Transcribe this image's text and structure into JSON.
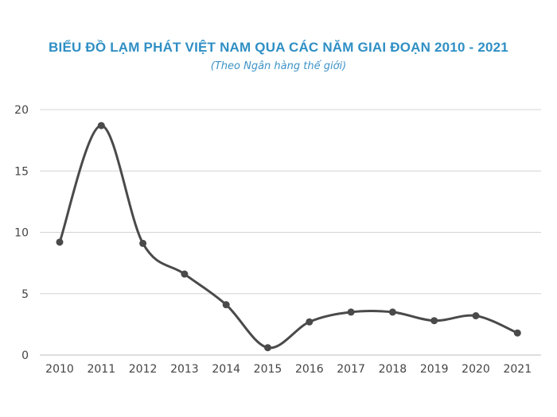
{
  "chart_data": {
    "type": "line",
    "title": "BIỂU ĐỒ LẠM PHÁT VIỆT NAM QUA CÁC NĂM GIAI ĐOẠN 2010 - 2021",
    "subtitle": "(Theo Ngân hàng thế giới)",
    "xlabel": "",
    "ylabel": "",
    "categories": [
      "2010",
      "2011",
      "2012",
      "2013",
      "2014",
      "2015",
      "2016",
      "2017",
      "2018",
      "2019",
      "2020",
      "2021"
    ],
    "series": [
      {
        "values": [
          9.2,
          18.7,
          9.1,
          6.6,
          4.1,
          0.6,
          2.7,
          3.5,
          3.5,
          2.8,
          3.2,
          1.8
        ]
      }
    ],
    "yticks": [
      0,
      5,
      10,
      15,
      20
    ],
    "ylim": [
      0,
      20
    ],
    "grid": true,
    "legend": "none",
    "line_color": "#4a4a4a"
  }
}
